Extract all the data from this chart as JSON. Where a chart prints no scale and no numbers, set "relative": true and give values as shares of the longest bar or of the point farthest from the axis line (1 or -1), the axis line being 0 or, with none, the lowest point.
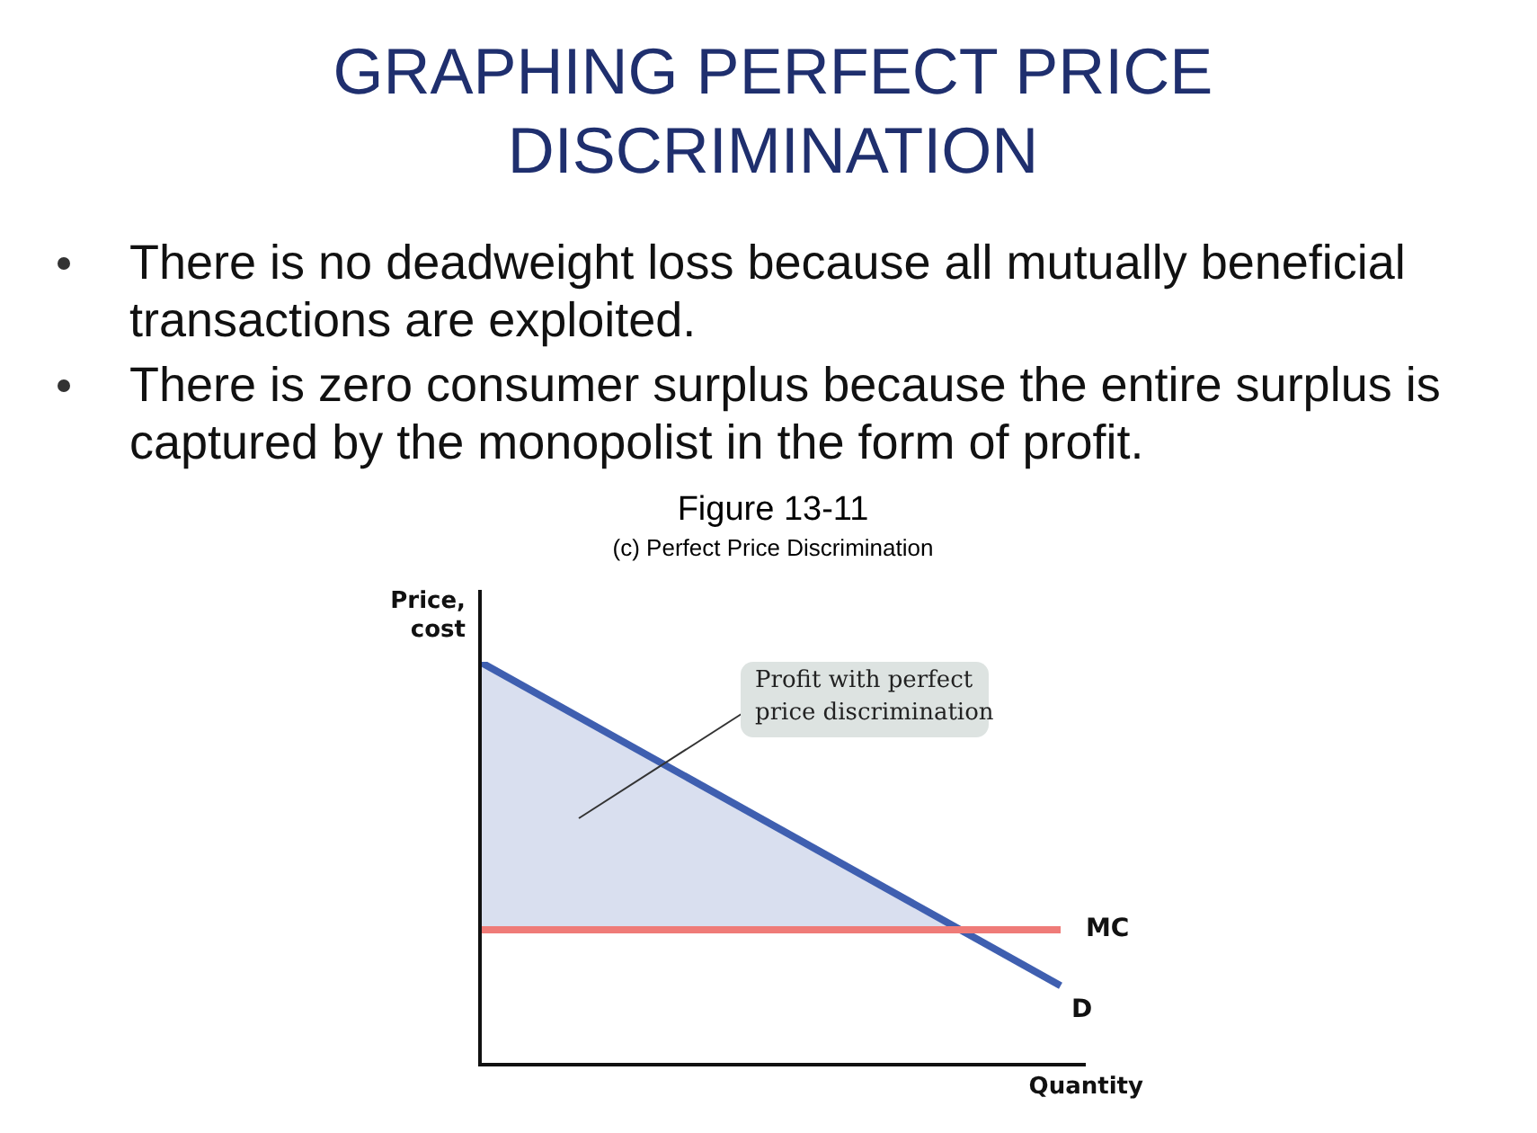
{
  "chart_data": {
    "type": "line",
    "title": "GRAPHING PERFECT PRICE DISCRIMINATION",
    "subtitle": "Figure 13-11",
    "xlabel": "Quantity",
    "ylabel": "Price, cost",
    "relative": true,
    "categories": [
      null,
      null
    ],
    "series": [
      {
        "name": "MC",
        "color": "#ef7b78",
        "values": [
          0.335,
          0.335
        ]
      },
      {
        "name": "D",
        "color": "#3f5fb0",
        "values": [
          1,
          0.196
        ],
        "lower": [
          0.335,
          0.335
        ],
        "upper": [
          1,
          0.196
        ]
      }
    ],
    "annotations": [
      "There is no deadweight loss because all mutually beneficial transactions are exploited.",
      "There is zero consumer surplus because the entire surplus is captured by the monopolist in the form of profit.",
      "(c) Perfect Price Discrimination",
      "Profit with perfect price discrimination"
    ],
    "legend": false,
    "marker": "none"
  }
}
